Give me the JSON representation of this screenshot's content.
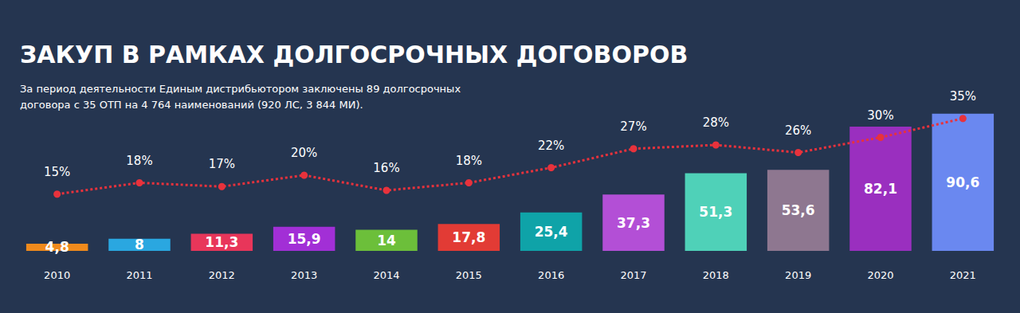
{
  "chart_data": {
    "type": "bar",
    "title": "ЗАКУП В РАМКАХ ДОЛГОСРОЧНЫХ ДОГОВОРОВ",
    "subtitle": "За период деятельности Единым дистрибьютором заключены 89 долгосрочных\nдоговора с 35 ОТП на 4 764 наименований (920 ЛС, 3 844 МИ).",
    "categories": [
      "2010",
      "2011",
      "2012",
      "2013",
      "2014",
      "2015",
      "2016",
      "2017",
      "2018",
      "2019",
      "2020",
      "2021"
    ],
    "series": [
      {
        "type": "bar",
        "colors": [
          "#f08a1c",
          "#2aa7e0",
          "#e8365a",
          "#a22fd6",
          "#6cbf3a",
          "#e23b35",
          "#0fa3a8",
          "#b34fd6",
          "#4fd1b8",
          "#8e7790",
          "#9a2fbf",
          "#6a88f0"
        ],
        "values": [
          4.8,
          8,
          11.3,
          15.9,
          14,
          17.8,
          25.4,
          37.3,
          51.3,
          53.6,
          82.1,
          90.6
        ],
        "value_labels": [
          "4,8",
          "8",
          "11,3",
          "15,9",
          "14",
          "17,8",
          "25,4",
          "37,3",
          "51,3",
          "53,6",
          "82,1",
          "90,6"
        ]
      },
      {
        "type": "line",
        "axis": "y2",
        "color": "#e8323c",
        "line_style": "dotted",
        "marker": "circle",
        "values": [
          15,
          18,
          17,
          20,
          16,
          18,
          22,
          27,
          28,
          26,
          30,
          35
        ],
        "value_labels": [
          "15%",
          "18%",
          "17%",
          "20%",
          "16%",
          "18%",
          "22%",
          "27%",
          "28%",
          "26%",
          "30%",
          "35%"
        ]
      }
    ],
    "ylim": [
      0,
      100
    ],
    "y2lim": [
      0,
      40
    ],
    "data_labels": true,
    "tick_labels": "x",
    "grid": false
  }
}
